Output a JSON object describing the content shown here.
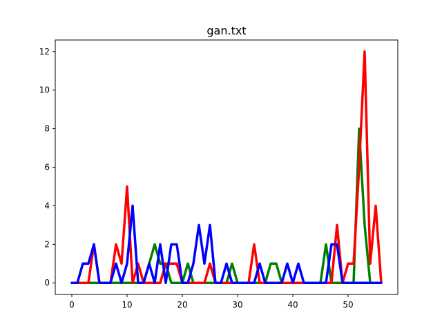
{
  "chart_data": {
    "type": "line",
    "title": "gan.txt",
    "xlabel": "",
    "ylabel": "",
    "xlim": [
      -3,
      59
    ],
    "ylim": [
      -0.6,
      12.6
    ],
    "xticks": [
      0,
      10,
      20,
      30,
      40,
      50
    ],
    "yticks": [
      0,
      2,
      4,
      6,
      8,
      10,
      12
    ],
    "grid": false,
    "x": [
      0,
      1,
      2,
      3,
      4,
      5,
      6,
      7,
      8,
      9,
      10,
      11,
      12,
      13,
      14,
      15,
      16,
      17,
      18,
      19,
      20,
      21,
      22,
      23,
      24,
      25,
      26,
      27,
      28,
      29,
      30,
      31,
      32,
      33,
      34,
      35,
      36,
      37,
      38,
      39,
      40,
      41,
      42,
      43,
      44,
      45,
      46,
      47,
      48,
      49,
      50,
      51,
      52,
      53,
      54,
      55,
      56
    ],
    "series": [
      {
        "color": "#008000",
        "values": [
          0,
          0,
          0,
          0,
          0,
          0,
          0,
          0,
          0,
          0,
          0,
          0,
          0,
          0,
          1,
          2,
          1,
          1,
          0,
          0,
          0,
          1,
          0,
          0,
          0,
          0,
          0,
          0,
          0,
          1,
          0,
          0,
          0,
          0,
          0,
          0,
          1,
          1,
          0,
          0,
          0,
          0,
          0,
          0,
          0,
          0,
          2,
          0,
          0,
          0,
          0,
          0,
          8,
          3,
          0,
          0,
          0
        ]
      },
      {
        "color": "#ff0000",
        "values": [
          0,
          0,
          0,
          0,
          2,
          0,
          0,
          0,
          2,
          1,
          5,
          0,
          1,
          0,
          0,
          0,
          0,
          1,
          1,
          1,
          0,
          0,
          0,
          0,
          0,
          1,
          0,
          0,
          0,
          0,
          0,
          0,
          0,
          2,
          0,
          0,
          0,
          0,
          0,
          0,
          0,
          0,
          0,
          0,
          0,
          0,
          0,
          0,
          3,
          0,
          1,
          1,
          6,
          12,
          1,
          4,
          0
        ]
      },
      {
        "color": "#0000ff",
        "values": [
          0,
          0,
          1,
          1,
          2,
          0,
          0,
          0,
          1,
          0,
          1,
          4,
          0,
          0,
          1,
          0,
          2,
          0,
          2,
          2,
          0,
          0,
          1,
          3,
          1,
          3,
          0,
          0,
          1,
          0,
          0,
          0,
          0,
          0,
          1,
          0,
          0,
          0,
          0,
          1,
          0,
          1,
          0,
          0,
          0,
          0,
          0,
          2,
          2,
          0,
          0,
          0,
          0,
          0,
          0,
          0,
          0
        ]
      }
    ]
  }
}
